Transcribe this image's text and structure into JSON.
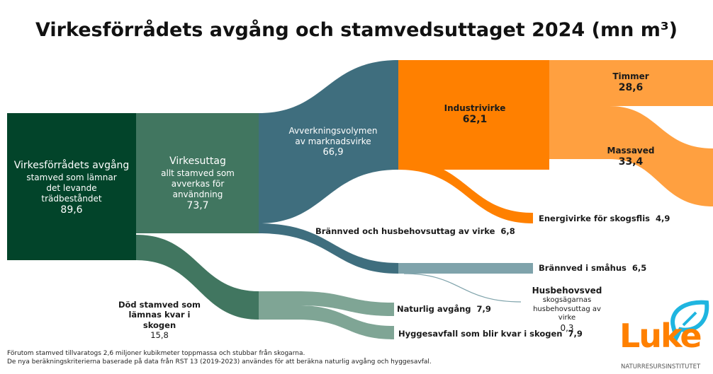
{
  "title": "Virkesförrådets avgång och stamvedsuttaget 2024 (mn m³)",
  "nodes": {
    "avgang": {
      "name": "Virkesförrådets avgång",
      "desc": "stamved som lämnar det levande trädbeståndet",
      "value": "89,6"
    },
    "uttag": {
      "name": "Virkesuttag",
      "desc": "allt stamved som avverkas för användning",
      "value": "73,7"
    },
    "avverkning": {
      "name": "Avverkningsvolymen av marknadsvirke",
      "value": "66,9"
    },
    "industri": {
      "name": "Industrivirke",
      "value": "62,1"
    },
    "timmer": {
      "name": "Timmer",
      "value": "28,6"
    },
    "massaved": {
      "name": "Massaved",
      "value": "33,4"
    },
    "energi": {
      "name": "Energivirke för skogsflis",
      "value": "4,9"
    },
    "brannved_husbehov": {
      "name": "Brännved och husbehovsuttag av virke",
      "value": "6,8"
    },
    "brannved_smahus": {
      "name": "Brännved i småhus",
      "value": "6,5"
    },
    "husbehovsved": {
      "name": "Husbehovsved",
      "desc": "skogsägarnas husbehovsuttag av virke",
      "value": "0,3"
    },
    "dod": {
      "name": "Död stamved som lämnas kvar i skogen",
      "value": "15,8"
    },
    "naturlig": {
      "name": "Naturlig avgång",
      "value": "7,9"
    },
    "hygges": {
      "name": "Hyggesavfall som blir kvar i skogen",
      "value": "7,9"
    }
  },
  "footnotes": [
    "Förutom stamved tillvaratogs 2,6 miljoner kubikmeter toppmassa och stubbar från skogarna.",
    "De nya beräkningskriterierna baserade på data från RST 13 (2019-2023) användes för att beräkna naturlig avgång och hyggesavfal."
  ],
  "logo": {
    "text": "Luke",
    "subtitle": "NATURRESURSINSTITUTET"
  },
  "colors": {
    "dark_green": "#02442a",
    "green": "#417660",
    "light_green": "#7fa595",
    "teal": "#3f6e7e",
    "light_teal": "#7fa3ab",
    "orange": "#ff8000",
    "light_orange": "#ffa040",
    "logo_blue": "#1fb5e0"
  }
}
